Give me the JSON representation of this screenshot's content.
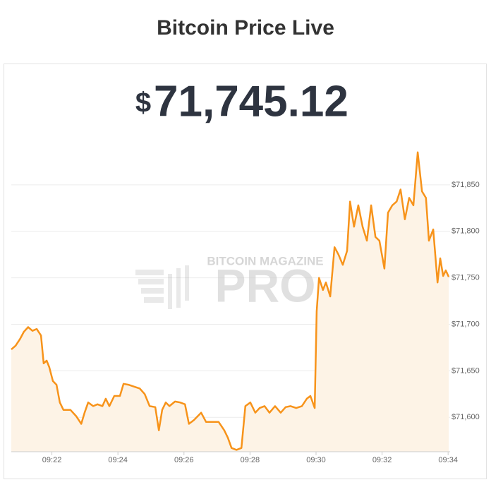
{
  "chart_data": {
    "type": "area",
    "title": "Bitcoin Price Live",
    "price_symbol": "$",
    "price": "71,745.12",
    "watermark": [
      "BITCOIN MAGAZINE",
      "PRO"
    ],
    "color": "#f7931a",
    "fill_color": "#fdf3e6",
    "grid": true,
    "x": [
      560.77,
      560.9,
      561.03,
      561.15,
      561.28,
      561.41,
      561.54,
      561.67,
      561.75,
      561.84,
      561.92,
      562.03,
      562.14,
      562.24,
      562.35,
      562.56,
      562.74,
      562.89,
      562.99,
      563.1,
      563.25,
      563.38,
      563.53,
      563.63,
      563.74,
      563.89,
      564.06,
      564.17,
      564.32,
      564.49,
      564.66,
      564.81,
      564.96,
      565.13,
      565.24,
      565.34,
      565.45,
      565.56,
      565.73,
      565.88,
      566.03,
      566.15,
      566.3,
      566.52,
      566.67,
      566.84,
      567.05,
      567.22,
      567.33,
      567.44,
      567.59,
      567.74,
      567.86,
      568.01,
      568.16,
      568.29,
      568.44,
      568.59,
      568.76,
      568.93,
      569.08,
      569.23,
      569.4,
      569.57,
      569.72,
      569.83,
      569.96,
      570.02,
      570.09,
      570.21,
      570.3,
      570.43,
      570.56,
      570.68,
      570.81,
      570.94,
      571.03,
      571.15,
      571.28,
      571.41,
      571.54,
      571.67,
      571.8,
      571.92,
      572.07,
      572.18,
      572.31,
      572.44,
      572.56,
      572.69,
      572.82,
      572.95,
      573.08,
      573.21,
      573.33,
      573.42,
      573.55,
      573.68,
      573.76,
      573.85,
      573.93,
      574.02
    ],
    "values": [
      71673,
      71677,
      71684,
      71692,
      71697,
      71693,
      71695,
      71688,
      71658,
      71661,
      71654,
      71639,
      71635,
      71616,
      71608,
      71608,
      71601,
      71593,
      71605,
      71616,
      71612,
      71614,
      71612,
      71620,
      71612,
      71623,
      71623,
      71636,
      71635,
      71633,
      71631,
      71625,
      71612,
      71611,
      71586,
      71608,
      71616,
      71612,
      71617,
      71616,
      71614,
      71593,
      71597,
      71605,
      71595,
      71595,
      71595,
      71586,
      71578,
      71567,
      71565,
      71567,
      71612,
      71616,
      71605,
      71610,
      71612,
      71605,
      71612,
      71605,
      71611,
      71612,
      71610,
      71612,
      71620,
      71623,
      71610,
      71714,
      71750,
      71737,
      71745,
      71730,
      71783,
      71775,
      71764,
      71779,
      71832,
      71805,
      71828,
      71805,
      71790,
      71828,
      71794,
      71790,
      71760,
      71820,
      71828,
      71832,
      71845,
      71813,
      71836,
      71828,
      71885,
      71843,
      71836,
      71790,
      71802,
      71745,
      71771,
      71752,
      71758,
      71751
    ],
    "xlim": [
      560.77,
      574.06
    ],
    "xticks": [
      {
        "value": 562,
        "label": "09:22"
      },
      {
        "value": 564,
        "label": "09:24"
      },
      {
        "value": 566,
        "label": "09:26"
      },
      {
        "value": 568,
        "label": "09:28"
      },
      {
        "value": 570,
        "label": "09:30"
      },
      {
        "value": 572,
        "label": "09:32"
      },
      {
        "value": 574,
        "label": "09:34"
      }
    ],
    "ylim": [
      71563,
      71897
    ],
    "yticks": [
      {
        "value": 71600,
        "label": "$71,600"
      },
      {
        "value": 71650,
        "label": "$71,650"
      },
      {
        "value": 71700,
        "label": "$71,700"
      },
      {
        "value": 71750,
        "label": "$71,750"
      },
      {
        "value": 71800,
        "label": "$71,800"
      },
      {
        "value": 71850,
        "label": "$71,850"
      }
    ]
  }
}
